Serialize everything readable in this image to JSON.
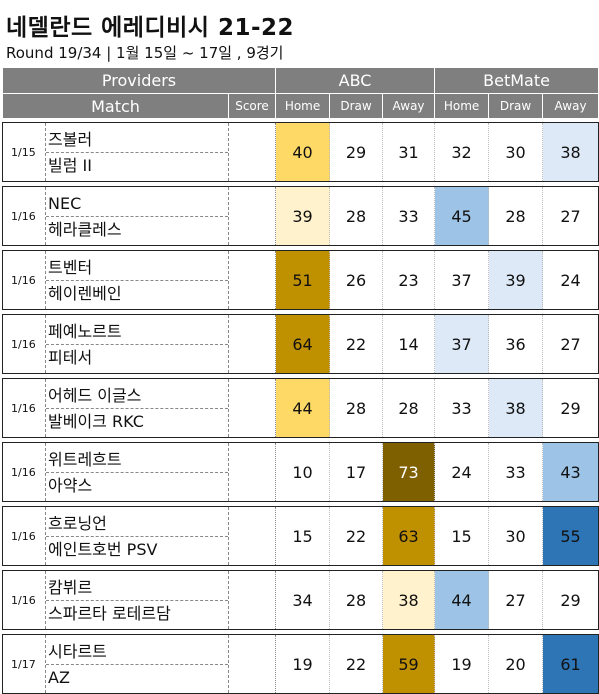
{
  "title": "네델란드 에레디비시 21-22",
  "subtitle": "Round 19/34 | 1월 15일 ~ 17일 , 9경기",
  "header": {
    "providers_label": "Providers",
    "provider1": "ABC",
    "provider2": "BetMate",
    "match_label": "Match",
    "score_label": "Score",
    "home_label": "Home",
    "draw_label": "Draw",
    "away_label": "Away"
  },
  "matches": [
    {
      "date": "1/15",
      "home": "즈볼러",
      "away": "빌럼 II",
      "score": "",
      "abc": {
        "home": "40",
        "draw": "29",
        "away": "31"
      },
      "betmate": {
        "home": "32",
        "draw": "30",
        "away": "38"
      }
    },
    {
      "date": "1/16",
      "home": "NEC",
      "away": "헤라클레스",
      "score": "",
      "abc": {
        "home": "39",
        "draw": "28",
        "away": "33"
      },
      "betmate": {
        "home": "45",
        "draw": "28",
        "away": "27"
      }
    },
    {
      "date": "1/16",
      "home": "트벤터",
      "away": "헤이렌베인",
      "score": "",
      "abc": {
        "home": "51",
        "draw": "26",
        "away": "23"
      },
      "betmate": {
        "home": "37",
        "draw": "39",
        "away": "24"
      }
    },
    {
      "date": "1/16",
      "home": "페예노르트",
      "away": "피테서",
      "score": "",
      "abc": {
        "home": "64",
        "draw": "22",
        "away": "14"
      },
      "betmate": {
        "home": "37",
        "draw": "36",
        "away": "27"
      }
    },
    {
      "date": "1/16",
      "home": "어헤드 이글스",
      "away": "발베이크 RKC",
      "score": "",
      "abc": {
        "home": "44",
        "draw": "28",
        "away": "28"
      },
      "betmate": {
        "home": "33",
        "draw": "38",
        "away": "29"
      }
    },
    {
      "date": "1/16",
      "home": "위트레흐트",
      "away": "아약스",
      "score": "",
      "abc": {
        "home": "10",
        "draw": "17",
        "away": "73"
      },
      "betmate": {
        "home": "24",
        "draw": "33",
        "away": "43"
      }
    },
    {
      "date": "1/16",
      "home": "흐로닝언",
      "away": "에인트호번 PSV",
      "score": "",
      "abc": {
        "home": "15",
        "draw": "22",
        "away": "63"
      },
      "betmate": {
        "home": "15",
        "draw": "30",
        "away": "55"
      }
    },
    {
      "date": "1/16",
      "home": "캄뷔르",
      "away": "스파르타 로테르담",
      "score": "",
      "abc": {
        "home": "34",
        "draw": "28",
        "away": "38"
      },
      "betmate": {
        "home": "44",
        "draw": "27",
        "away": "29"
      }
    },
    {
      "date": "1/17",
      "home": "시타르트",
      "away": "AZ",
      "score": "",
      "abc": {
        "home": "19",
        "draw": "22",
        "away": "59"
      },
      "betmate": {
        "home": "19",
        "draw": "20",
        "away": "61"
      }
    }
  ],
  "highlight_colors": {
    "abc_light": "#fff2cc",
    "abc_mid": "#ffd966",
    "abc_strong": "#bf9000",
    "abc_max": "#7f6000",
    "betmate_light": "#dde9f7",
    "betmate_mid": "#9dc3e6",
    "betmate_strong": "#2e75b6"
  }
}
